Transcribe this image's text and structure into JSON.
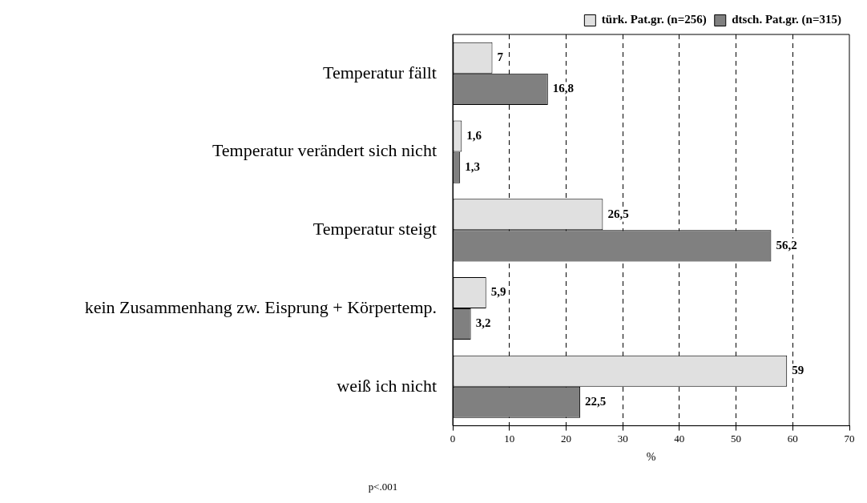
{
  "chart_data": {
    "type": "bar",
    "orientation": "horizontal",
    "categories": [
      "Temperatur fällt",
      "Temperatur verändert sich nicht",
      "Temperatur steigt",
      "kein Zusammenhang zw. Eisprung + Körpertemp.",
      "weiß ich nicht"
    ],
    "series": [
      {
        "name": "türk. Pat.gr. (n=256)",
        "color": "#e0e0e0",
        "values": [
          7,
          1.6,
          26.5,
          5.9,
          59
        ],
        "value_labels": [
          "7",
          "1,6",
          "26,5",
          "5,9",
          "59"
        ]
      },
      {
        "name": "dtsch. Pat.gr. (n=315)",
        "color": "#808080",
        "values": [
          16.8,
          1.3,
          56.2,
          3.2,
          22.5
        ],
        "value_labels": [
          "16,8",
          "1,3",
          "56,2",
          "3,2",
          "22,5"
        ]
      }
    ],
    "xlabel": "%",
    "xlim": [
      0,
      70
    ],
    "xticks": [
      0,
      10,
      20,
      30,
      40,
      50,
      60,
      70
    ],
    "grid": "x",
    "legend": "top right",
    "annotations": [
      "p<.001"
    ]
  }
}
